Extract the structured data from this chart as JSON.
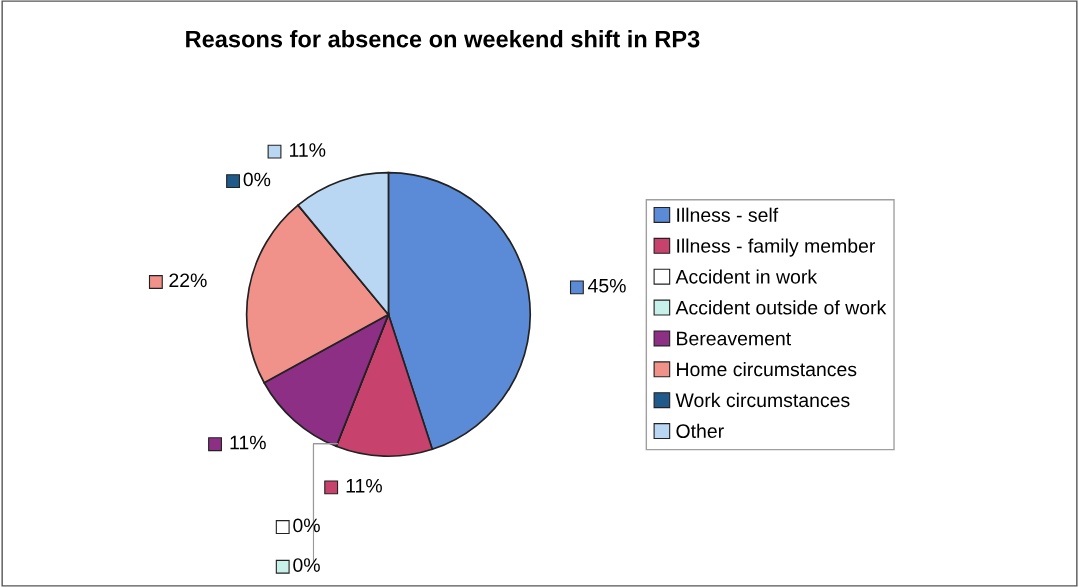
{
  "chart_data": {
    "type": "pie",
    "title": "Reasons for absence on weekend shift in RP3",
    "categories": [
      "Illness - self",
      "Illness - family member",
      "Accident in work",
      "Accident outside of work",
      "Bereavement",
      "Home circumstances",
      "Work circumstances",
      "Other"
    ],
    "values": [
      45,
      11,
      0,
      0,
      11,
      22,
      0,
      11
    ],
    "value_labels": [
      "45%",
      "11%",
      "0%",
      "0%",
      "11%",
      "22%",
      "0%",
      "11%"
    ],
    "colors": [
      "#5b8bd6",
      "#c8426e",
      "#ffffff",
      "#c8f0ea",
      "#8e2f86",
      "#f0918a",
      "#1f5a8a",
      "#b9d7f2"
    ],
    "legend": "right"
  }
}
